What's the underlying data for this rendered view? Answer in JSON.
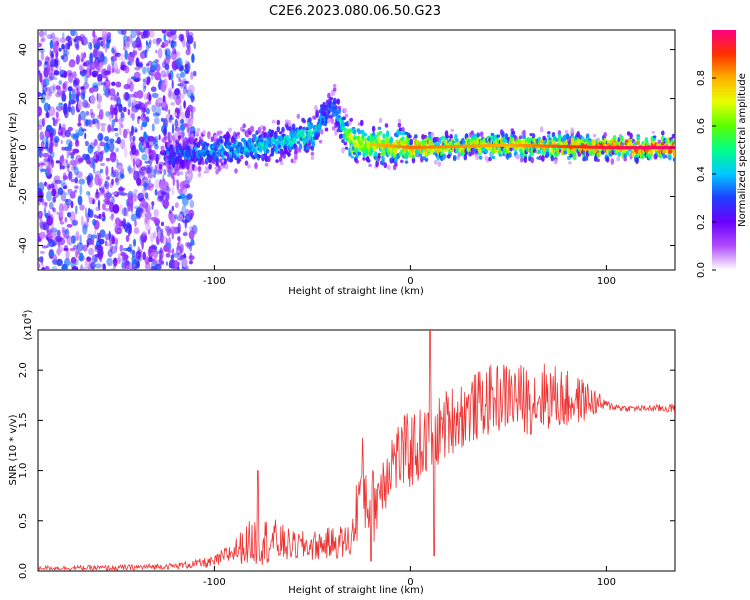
{
  "figure_title": "C2E6.2023.080.06.50.G23",
  "chart_data": [
    {
      "type": "heatmap",
      "title": "",
      "xlabel": "Height of straight line (km)",
      "ylabel": "Frequency (Hz)",
      "xlim": [
        -190,
        135
      ],
      "ylim": [
        -50,
        48
      ],
      "xticks": [
        -100,
        0,
        100
      ],
      "yticks": [
        -40,
        -20,
        0,
        20,
        40
      ],
      "colorbar": {
        "label": "Normalized spectral amplitude",
        "range": [
          0.0,
          1.0
        ],
        "ticks": [
          "0.0",
          "0.2",
          "0.4",
          "0.6",
          "0.8"
        ],
        "colors": [
          "#ffffff",
          "#b14cff",
          "#6a00ff",
          "#1f3fff",
          "#00c8ff",
          "#00ff8a",
          "#5aff00",
          "#e8ff00",
          "#ffb000",
          "#ff3000",
          "#ff0080"
        ]
      },
      "description_points": [
        {
          "height_km": -190,
          "freq_hz": 0,
          "amp": 0.15
        },
        {
          "height_km": -115,
          "freq_hz": -3,
          "amp": 0.35
        },
        {
          "height_km": -80,
          "freq_hz": 0,
          "amp": 0.45
        },
        {
          "height_km": -50,
          "freq_hz": 5,
          "amp": 0.5
        },
        {
          "height_km": -40,
          "freq_hz": 18,
          "amp": 0.3
        },
        {
          "height_km": -30,
          "freq_hz": 2,
          "amp": 0.7
        },
        {
          "height_km": 0,
          "freq_hz": 0,
          "amp": 0.8
        },
        {
          "height_km": 50,
          "freq_hz": 1,
          "amp": 0.75
        },
        {
          "height_km": 100,
          "freq_hz": 0,
          "amp": 0.9
        },
        {
          "height_km": 135,
          "freq_hz": 0,
          "amp": 0.95
        }
      ]
    },
    {
      "type": "line",
      "title": "",
      "xlabel": "Height of straight line (km)",
      "ylabel": "SNR (10 * v/v)",
      "y_scale_label": "(x10",
      "y_scale_exp": "4",
      "xlim": [
        -190,
        135
      ],
      "ylim": [
        0,
        24000
      ],
      "xticks": [
        -100,
        0,
        100
      ],
      "yticks": [
        "0.0",
        "0.5",
        "1.0",
        "1.5",
        "2.0"
      ],
      "color": "#ee3333",
      "envelope": {
        "x": [
          -190,
          -150,
          -120,
          -100,
          -90,
          -80,
          -70,
          -60,
          -50,
          -40,
          -30,
          -25,
          -20,
          -10,
          0,
          10,
          20,
          30,
          40,
          50,
          60,
          70,
          80,
          90,
          100,
          110,
          120,
          135
        ],
        "mid": [
          300,
          300,
          500,
          900,
          2000,
          3000,
          3000,
          2500,
          2500,
          2800,
          3000,
          9000,
          6000,
          11000,
          12000,
          13000,
          15000,
          16000,
          17000,
          17500,
          17000,
          17500,
          17000,
          17000,
          16500,
          16200,
          16200,
          16200
        ],
        "amp": [
          200,
          300,
          300,
          600,
          1200,
          2500,
          2300,
          1500,
          1500,
          1600,
          1800,
          5000,
          4000,
          3500,
          4000,
          3500,
          3500,
          3500,
          3500,
          3500,
          3500,
          3500,
          3000,
          2000,
          500,
          300,
          300,
          500
        ]
      },
      "spikes": [
        {
          "x": 10,
          "y": 24000
        },
        {
          "x": 12,
          "y": 1500
        },
        {
          "x": -78,
          "y": 10000
        },
        {
          "x": -20,
          "y": 1000
        }
      ]
    }
  ]
}
